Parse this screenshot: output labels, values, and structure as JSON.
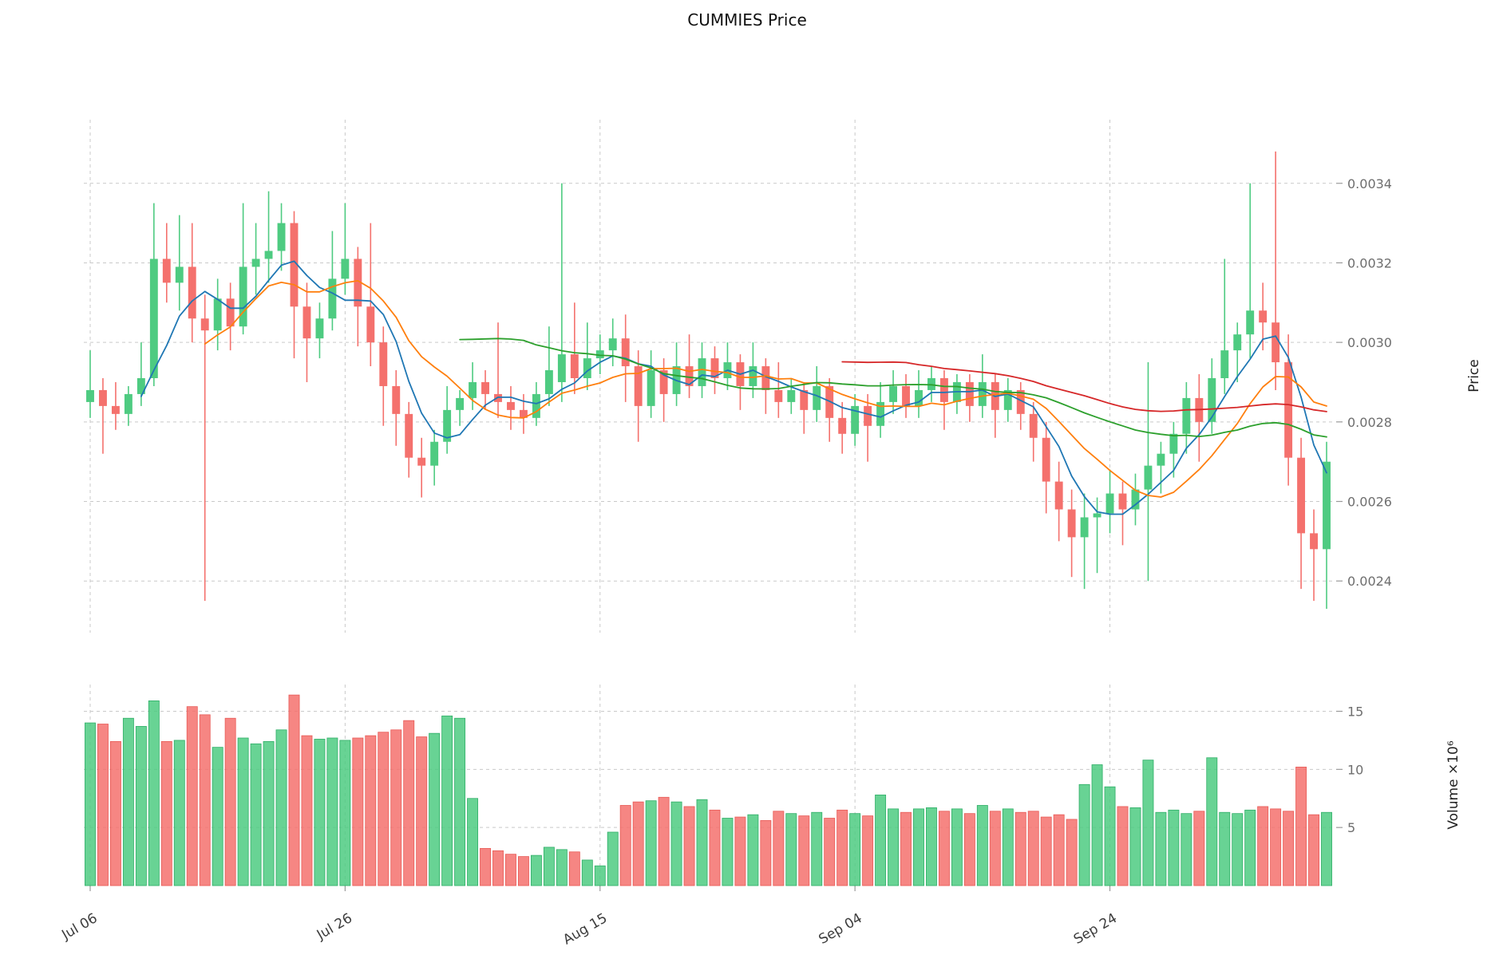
{
  "chart_data": {
    "type": "candlestick",
    "title": "CUMMIES Price",
    "ylabel": "Price",
    "ylabel2": "Volume  ×10⁶",
    "xlabel": "",
    "grid": true,
    "price_range": [
      0.00227,
      0.00356
    ],
    "volume_max": 17.3,
    "price_ticks": [
      {
        "v": 0.0024,
        "label": "0.0024"
      },
      {
        "v": 0.0026,
        "label": "0.0026"
      },
      {
        "v": 0.0028,
        "label": "0.0028"
      },
      {
        "v": 0.003,
        "label": "0.0030"
      },
      {
        "v": 0.0032,
        "label": "0.0032"
      },
      {
        "v": 0.0034,
        "label": "0.0034"
      }
    ],
    "volume_ticks": [
      {
        "v": 5,
        "label": "5"
      },
      {
        "v": 10,
        "label": "10"
      },
      {
        "v": 15,
        "label": "15"
      }
    ],
    "xticks": [
      {
        "i": 0,
        "label": "Jul 06"
      },
      {
        "i": 20,
        "label": "Jul 26"
      },
      {
        "i": 40,
        "label": "Aug 15"
      },
      {
        "i": 60,
        "label": "Sep 04"
      },
      {
        "i": 80,
        "label": "Sep 24"
      }
    ],
    "ma_periods": [
      5,
      10,
      30,
      60
    ],
    "ma_colors": [
      "#1f77b4",
      "#ff7f0e",
      "#2ca02c",
      "#d62728"
    ],
    "colors": {
      "up": "#4ecb81",
      "down": "#f4716d",
      "up_edge": "#2fae67",
      "down_edge": "#e85a56",
      "grid": "#c9c9c9",
      "ytick_label": "#6e6e6e",
      "xtick_label": "#3c3c3c"
    },
    "ohlc": [
      [
        0.00285,
        0.00298,
        0.00281,
        0.00288
      ],
      [
        0.00288,
        0.00291,
        0.00272,
        0.00284
      ],
      [
        0.00284,
        0.0029,
        0.00278,
        0.00282
      ],
      [
        0.00282,
        0.00289,
        0.00279,
        0.00287
      ],
      [
        0.00287,
        0.003,
        0.00284,
        0.00291
      ],
      [
        0.00291,
        0.00335,
        0.00289,
        0.00321
      ],
      [
        0.00321,
        0.0033,
        0.0031,
        0.00315
      ],
      [
        0.00315,
        0.00332,
        0.00308,
        0.00319
      ],
      [
        0.00319,
        0.0033,
        0.003,
        0.00306
      ],
      [
        0.00306,
        0.00312,
        0.00235,
        0.00303
      ],
      [
        0.00303,
        0.00316,
        0.00298,
        0.00311
      ],
      [
        0.00311,
        0.00315,
        0.00298,
        0.00304
      ],
      [
        0.00304,
        0.00335,
        0.00302,
        0.00319
      ],
      [
        0.00319,
        0.0033,
        0.00312,
        0.00321
      ],
      [
        0.00321,
        0.00338,
        0.00315,
        0.00323
      ],
      [
        0.00323,
        0.00335,
        0.00318,
        0.0033
      ],
      [
        0.0033,
        0.00333,
        0.00296,
        0.00309
      ],
      [
        0.00309,
        0.00315,
        0.0029,
        0.00301
      ],
      [
        0.00301,
        0.0031,
        0.00296,
        0.00306
      ],
      [
        0.00306,
        0.00328,
        0.00303,
        0.00316
      ],
      [
        0.00316,
        0.00335,
        0.00312,
        0.00321
      ],
      [
        0.00321,
        0.00324,
        0.00299,
        0.00309
      ],
      [
        0.00309,
        0.0033,
        0.00294,
        0.003
      ],
      [
        0.003,
        0.00304,
        0.00279,
        0.00289
      ],
      [
        0.00289,
        0.00293,
        0.00274,
        0.00282
      ],
      [
        0.00282,
        0.00285,
        0.00266,
        0.00271
      ],
      [
        0.00271,
        0.00276,
        0.00261,
        0.00269
      ],
      [
        0.00269,
        0.00278,
        0.00264,
        0.00275
      ],
      [
        0.00275,
        0.00289,
        0.00272,
        0.00283
      ],
      [
        0.00283,
        0.00288,
        0.00279,
        0.00286
      ],
      [
        0.00286,
        0.00295,
        0.00283,
        0.0029
      ],
      [
        0.0029,
        0.00293,
        0.00283,
        0.00287
      ],
      [
        0.00287,
        0.00305,
        0.00281,
        0.00285
      ],
      [
        0.00285,
        0.00289,
        0.00278,
        0.00283
      ],
      [
        0.00283,
        0.00287,
        0.00277,
        0.00281
      ],
      [
        0.00281,
        0.0029,
        0.00279,
        0.00287
      ],
      [
        0.00287,
        0.00304,
        0.00284,
        0.00293
      ],
      [
        0.0029,
        0.0034,
        0.00285,
        0.00297
      ],
      [
        0.00297,
        0.0031,
        0.00287,
        0.00291
      ],
      [
        0.00291,
        0.00305,
        0.00288,
        0.00296
      ],
      [
        0.00296,
        0.00302,
        0.00292,
        0.00298
      ],
      [
        0.00298,
        0.00306,
        0.00294,
        0.00301
      ],
      [
        0.00301,
        0.00307,
        0.00285,
        0.00294
      ],
      [
        0.00294,
        0.00298,
        0.00275,
        0.00284
      ],
      [
        0.00284,
        0.00298,
        0.00281,
        0.00293
      ],
      [
        0.00293,
        0.00296,
        0.0028,
        0.00287
      ],
      [
        0.00287,
        0.003,
        0.00284,
        0.00294
      ],
      [
        0.00294,
        0.00302,
        0.00286,
        0.00289
      ],
      [
        0.00289,
        0.003,
        0.00286,
        0.00296
      ],
      [
        0.00296,
        0.00299,
        0.00287,
        0.00291
      ],
      [
        0.00291,
        0.003,
        0.00288,
        0.00295
      ],
      [
        0.00295,
        0.00297,
        0.00283,
        0.00289
      ],
      [
        0.00289,
        0.003,
        0.00286,
        0.00294
      ],
      [
        0.00294,
        0.00296,
        0.00282,
        0.00288
      ],
      [
        0.00288,
        0.00295,
        0.00281,
        0.00285
      ],
      [
        0.00285,
        0.00291,
        0.00282,
        0.00288
      ],
      [
        0.00288,
        0.0029,
        0.00277,
        0.00283
      ],
      [
        0.00283,
        0.00294,
        0.0028,
        0.00289
      ],
      [
        0.00289,
        0.00291,
        0.00275,
        0.00281
      ],
      [
        0.00281,
        0.00285,
        0.00272,
        0.00277
      ],
      [
        0.00277,
        0.00287,
        0.00274,
        0.00284
      ],
      [
        0.00284,
        0.00287,
        0.0027,
        0.00279
      ],
      [
        0.00279,
        0.0029,
        0.00276,
        0.00285
      ],
      [
        0.00285,
        0.00293,
        0.00282,
        0.00289
      ],
      [
        0.00289,
        0.00292,
        0.00281,
        0.00284
      ],
      [
        0.00284,
        0.00293,
        0.00281,
        0.00288
      ],
      [
        0.00288,
        0.00294,
        0.00285,
        0.00291
      ],
      [
        0.00291,
        0.00293,
        0.00278,
        0.00285
      ],
      [
        0.00285,
        0.00292,
        0.00282,
        0.0029
      ],
      [
        0.0029,
        0.00292,
        0.0028,
        0.00284
      ],
      [
        0.00284,
        0.00297,
        0.00281,
        0.0029
      ],
      [
        0.0029,
        0.00292,
        0.00276,
        0.00283
      ],
      [
        0.00283,
        0.00291,
        0.0028,
        0.00288
      ],
      [
        0.00288,
        0.0029,
        0.00278,
        0.00282
      ],
      [
        0.00282,
        0.00285,
        0.0027,
        0.00276
      ],
      [
        0.00276,
        0.0028,
        0.00257,
        0.00265
      ],
      [
        0.00265,
        0.0027,
        0.0025,
        0.00258
      ],
      [
        0.00258,
        0.00263,
        0.00241,
        0.00251
      ],
      [
        0.00251,
        0.00262,
        0.00238,
        0.00256
      ],
      [
        0.00256,
        0.00261,
        0.00242,
        0.00257
      ],
      [
        0.00257,
        0.00268,
        0.00252,
        0.00262
      ],
      [
        0.00262,
        0.00265,
        0.00249,
        0.00258
      ],
      [
        0.00258,
        0.00267,
        0.00254,
        0.00263
      ],
      [
        0.00263,
        0.00295,
        0.0024,
        0.00269
      ],
      [
        0.00269,
        0.00275,
        0.00262,
        0.00272
      ],
      [
        0.00272,
        0.0028,
        0.00266,
        0.00277
      ],
      [
        0.00277,
        0.0029,
        0.00272,
        0.00286
      ],
      [
        0.00286,
        0.00292,
        0.0027,
        0.0028
      ],
      [
        0.0028,
        0.00296,
        0.00277,
        0.00291
      ],
      [
        0.00291,
        0.00321,
        0.00287,
        0.00298
      ],
      [
        0.00298,
        0.00305,
        0.0029,
        0.00302
      ],
      [
        0.00302,
        0.0034,
        0.00296,
        0.00308
      ],
      [
        0.00308,
        0.00315,
        0.00298,
        0.00305
      ],
      [
        0.00305,
        0.00348,
        0.00288,
        0.00295
      ],
      [
        0.00295,
        0.00302,
        0.00264,
        0.00271
      ],
      [
        0.00271,
        0.00276,
        0.00238,
        0.00252
      ],
      [
        0.00252,
        0.00258,
        0.00235,
        0.00248
      ],
      [
        0.00248,
        0.00275,
        0.00233,
        0.0027
      ]
    ],
    "volumes": [
      14.0,
      13.9,
      12.4,
      14.4,
      13.7,
      15.9,
      12.4,
      12.5,
      15.4,
      14.7,
      11.9,
      14.4,
      12.7,
      12.2,
      12.4,
      13.4,
      16.4,
      12.9,
      12.6,
      12.7,
      12.5,
      12.7,
      12.9,
      13.2,
      13.4,
      14.2,
      12.8,
      13.1,
      14.6,
      14.4,
      7.5,
      3.2,
      3.0,
      2.7,
      2.5,
      2.6,
      3.3,
      3.1,
      2.9,
      2.2,
      1.7,
      4.6,
      6.9,
      7.2,
      7.3,
      7.6,
      7.2,
      6.8,
      7.4,
      6.5,
      5.8,
      5.9,
      6.1,
      5.6,
      6.4,
      6.2,
      6.0,
      6.3,
      5.8,
      6.5,
      6.2,
      6.0,
      7.8,
      6.6,
      6.3,
      6.6,
      6.7,
      6.4,
      6.6,
      6.2,
      6.9,
      6.4,
      6.6,
      6.3,
      6.4,
      5.9,
      6.1,
      5.7,
      8.7,
      10.4,
      8.5,
      6.8,
      6.7,
      10.8,
      6.3,
      6.5,
      6.2,
      6.4,
      11.0,
      6.3,
      6.2,
      6.5,
      6.8,
      6.6,
      6.4,
      10.2,
      6.1,
      6.3
    ]
  }
}
